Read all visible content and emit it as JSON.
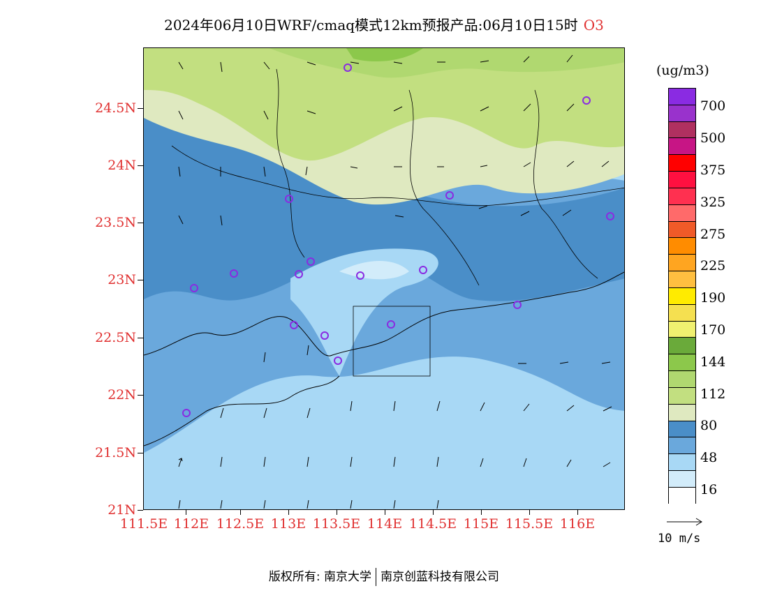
{
  "title": {
    "text": "2024年06月10日WRF/cmaq模式12km预报产品:06月10日15时",
    "species": "O3"
  },
  "axes": {
    "lat_labels": [
      "24.5N",
      "24N",
      "23.5N",
      "23N",
      "22.5N",
      "22N",
      "21.5N",
      "21N"
    ],
    "lon_labels": [
      "111.5E",
      "112E",
      "112.5E",
      "113E",
      "113.5E",
      "114E",
      "114.5E",
      "115E",
      "115.5E",
      "116E"
    ]
  },
  "colorbar": {
    "unit": "(ug/m3)",
    "colors": [
      "#8a2be2",
      "#9932cc",
      "#b03060",
      "#c71585",
      "#ff0000",
      "#ff1040",
      "#ff3050",
      "#ff6a6a",
      "#f05a28",
      "#ff8c00",
      "#ffa520",
      "#ffbf40",
      "#ffeb00",
      "#f5e050",
      "#f0f070",
      "#6aaa3a",
      "#8cc84b",
      "#b0d870",
      "#c2df80",
      "#dfe9c0",
      "#4a8ec8",
      "#6aa8dc",
      "#a8d8f5",
      "#d2ecfa",
      "#ffffff"
    ],
    "labels": [
      "700",
      "500",
      "375",
      "325",
      "275",
      "225",
      "190",
      "170",
      "144",
      "112",
      "80",
      "48",
      "16"
    ]
  },
  "wind_key": {
    "label": "10 m/s"
  },
  "footer": {
    "left": "版权所有: 南京大学",
    "right": "南京创蓝科技有限公司"
  }
}
